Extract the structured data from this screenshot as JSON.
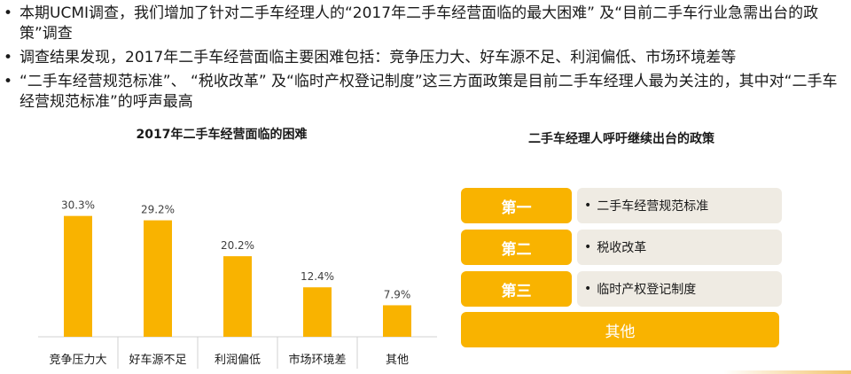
{
  "bullets": [
    "本期UCMI调查，我们增加了针对二手车经理人的“2017年二手车经营面临的最大困难” 及“目前二手车行业急需出台的政策”调查",
    "调查结果发现，2017年二手车经营面临主要困难包括：竞争压力大、好车源不足、利润偏低、市场环境差等",
    "“二手车经营规范标准”、 “税收改革” 及“临时产权登记制度”这三方面政策是目前二手车经理人最为关注的，其中对“二手车经营规范标准”的呼声最高"
  ],
  "bullet_symbol": "•",
  "chart_data": {
    "type": "bar",
    "title": "2017年二手车经营面临的困难",
    "categories": [
      "竞争压力大",
      "好车源不足",
      "利润偏低",
      "市场环境差",
      "其他"
    ],
    "values": [
      30.3,
      29.2,
      20.2,
      12.4,
      7.9
    ],
    "value_labels": [
      "30.3%",
      "29.2%",
      "20.2%",
      "12.4%",
      "7.9%"
    ],
    "ylim": [
      0,
      40
    ],
    "grid": false,
    "bar_color": "#f9b300"
  },
  "policy": {
    "title": "二手车经理人呼吁继续出台的政策",
    "items": [
      {
        "rank": "第一",
        "text": "二手车经营规范标准"
      },
      {
        "rank": "第二",
        "text": "税收改革"
      },
      {
        "rank": "第三",
        "text": "临时产权登记制度"
      }
    ],
    "other": "其他",
    "accent_color": "#f9b300",
    "panel_color": "#efebe3"
  }
}
